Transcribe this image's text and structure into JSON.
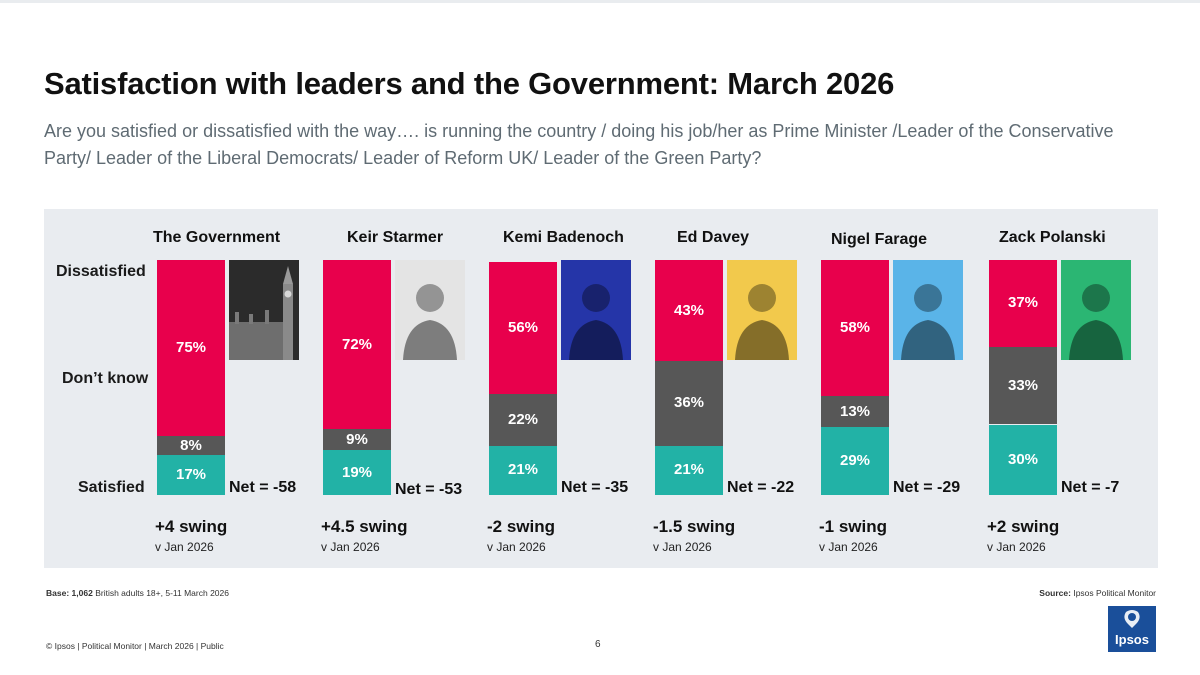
{
  "header": {
    "title": "Satisfaction with leaders and the Government: March 2026",
    "subtitle": "Are you satisfied or dissatisfied with the way…. is running the country / doing his job/her as Prime Minister /Leader of the Conservative Party/ Leader of the Liberal Democrats/ Leader of Reform UK/ Leader of the Green Party?"
  },
  "row_labels": {
    "dissatisfied": "Dissatisfied",
    "dont_know": "Don’t know",
    "satisfied": "Satisfied"
  },
  "colors": {
    "dissatisfied": "#e8004c",
    "dont_know": "#575757",
    "satisfied": "#22b2a6",
    "panel": "#e9ecf0",
    "brand": "#1a4f9a"
  },
  "chart_data": {
    "type": "bar",
    "stacked": true,
    "unit": "%",
    "categories": [
      "The Government",
      "Keir Starmer",
      "Kemi Badenoch",
      "Ed Davey",
      "Nigel Farage",
      "Zack Polanski"
    ],
    "series": [
      {
        "name": "Satisfied",
        "values": [
          17,
          19,
          21,
          21,
          29,
          30
        ]
      },
      {
        "name": "Don’t know",
        "values": [
          8,
          9,
          22,
          36,
          13,
          33
        ]
      },
      {
        "name": "Dissatisfied",
        "values": [
          75,
          72,
          56,
          43,
          58,
          37
        ]
      }
    ],
    "value_labels": {
      "satisfied": [
        "17%",
        "19%",
        "21%",
        "21%",
        "29%",
        "30%"
      ],
      "dont_know": [
        "8%",
        "9%",
        "22%",
        "36%",
        "13%",
        "33%"
      ],
      "dissatisfied": [
        "75%",
        "72%",
        "56%",
        "43%",
        "58%",
        "37%"
      ]
    },
    "net_labels": [
      "Net = -58",
      "Net = -53",
      "Net = -35",
      "Net = -22",
      "Net = -29",
      "Net = -7"
    ],
    "swing_labels": [
      "+4 swing",
      "+4.5 swing",
      "-2 swing",
      "-1.5 swing",
      "-1 swing",
      "+2 swing"
    ],
    "swing_subtitle": "v Jan 2026",
    "ylim": [
      0,
      100
    ],
    "photo_backgrounds": [
      "#2b2b2b",
      "#e4e4e4",
      "#2535a8",
      "#f2c94c",
      "#5ab4e8",
      "#2bb673"
    ]
  },
  "footer": {
    "base_label": "Base:",
    "base_n": "1,062",
    "base_text": "British adults 18+, 5-11 March 2026",
    "source_label": "Source:",
    "source_text": "Ipsos Political Monitor",
    "copyright": "© Ipsos | Political Monitor | March 2026 | Public",
    "page_number": "6",
    "logo_text": "Ipsos"
  }
}
